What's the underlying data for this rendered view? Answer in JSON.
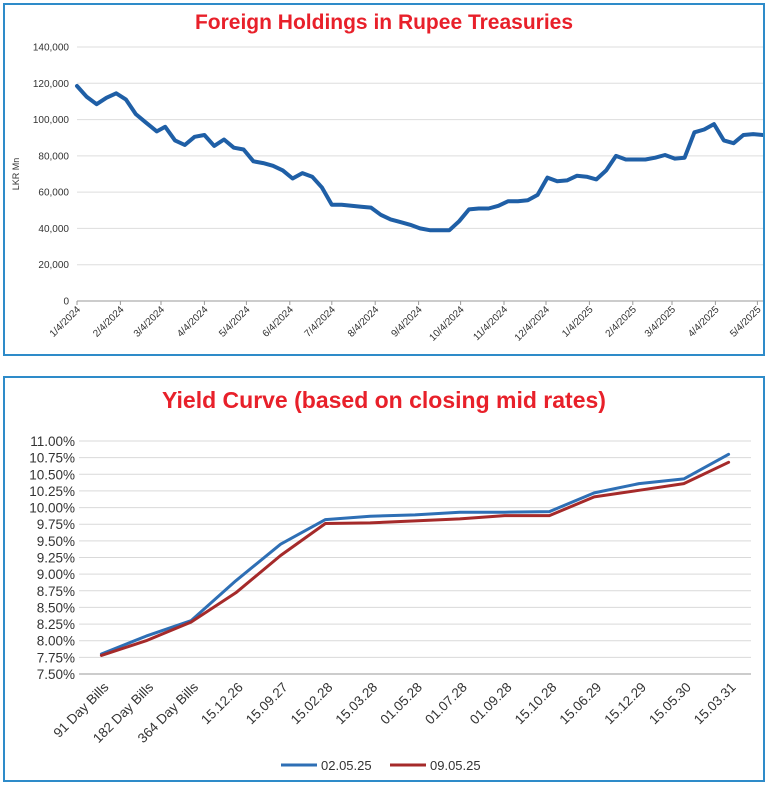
{
  "chart_data": [
    {
      "type": "line",
      "title": "Foreign Holdings in Rupee Treasuries",
      "ylabel": "LKR Mn",
      "xlabel": "",
      "ylim": [
        0,
        140000
      ],
      "yticks": [
        "0",
        "20,000",
        "40,000",
        "60,000",
        "80,000",
        "100,000",
        "120,000",
        "140,000"
      ],
      "xtick_labels": [
        "1/4/2024",
        "2/4/2024",
        "3/4/2024",
        "4/4/2024",
        "5/4/2024",
        "6/4/2024",
        "7/4/2024",
        "8/4/2024",
        "9/4/2024",
        "10/4/2024",
        "11/4/2024",
        "12/4/2024",
        "1/4/2025",
        "2/4/2025",
        "3/4/2025",
        "4/4/2025",
        "5/4/2025"
      ],
      "grid": "horizontal",
      "legend": "none",
      "series": [
        {
          "color": "#1f5fa6",
          "x": [
            "2024-01-04",
            "2024-01-11",
            "2024-01-18",
            "2024-01-25",
            "2024-02-01",
            "2024-02-08",
            "2024-02-15",
            "2024-02-22",
            "2024-03-01",
            "2024-03-07",
            "2024-03-14",
            "2024-03-21",
            "2024-03-28",
            "2024-04-04",
            "2024-04-11",
            "2024-04-18",
            "2024-04-25",
            "2024-05-02",
            "2024-05-09",
            "2024-05-16",
            "2024-05-23",
            "2024-05-30",
            "2024-06-06",
            "2024-06-13",
            "2024-06-20",
            "2024-06-27",
            "2024-07-04",
            "2024-07-11",
            "2024-07-18",
            "2024-07-25",
            "2024-08-01",
            "2024-08-08",
            "2024-08-15",
            "2024-08-22",
            "2024-08-29",
            "2024-09-05",
            "2024-09-12",
            "2024-09-19",
            "2024-09-26",
            "2024-10-03",
            "2024-10-10",
            "2024-10-17",
            "2024-10-24",
            "2024-10-31",
            "2024-11-07",
            "2024-11-14",
            "2024-11-21",
            "2024-11-28",
            "2024-12-05",
            "2024-12-12",
            "2024-12-19",
            "2024-12-26",
            "2025-01-02",
            "2025-01-09",
            "2025-01-16",
            "2025-01-23",
            "2025-01-30",
            "2025-02-06",
            "2025-02-13",
            "2025-02-20",
            "2025-02-27",
            "2025-03-06",
            "2025-03-13",
            "2025-03-20",
            "2025-03-27",
            "2025-04-03",
            "2025-04-10",
            "2025-04-17",
            "2025-04-24",
            "2025-05-01",
            "2025-05-08"
          ],
          "values": [
            118500,
            112500,
            108500,
            112000,
            114500,
            111000,
            103000,
            98500,
            93500,
            96000,
            88500,
            86000,
            90500,
            91500,
            85500,
            89000,
            84500,
            83500,
            77000,
            76000,
            74500,
            72000,
            67500,
            70500,
            68500,
            62500,
            53000,
            53000,
            52500,
            52000,
            51500,
            47500,
            45000,
            43500,
            42000,
            40000,
            39000,
            39000,
            39000,
            44000,
            50500,
            51000,
            51000,
            52500,
            55000,
            55000,
            55500,
            58500,
            68000,
            66000,
            66500,
            69000,
            68500,
            67000,
            72000,
            80000,
            78000,
            78000,
            78000,
            79000,
            80500,
            78500,
            79000,
            93000,
            94500,
            97500,
            88500,
            87000,
            91500,
            92000,
            91500
          ]
        }
      ]
    },
    {
      "type": "line",
      "title": "Yield Curve (based on closing mid rates)",
      "xlabel": "",
      "ylabel": "",
      "ylim": [
        7.5,
        11.0
      ],
      "yticks": [
        "7.50%",
        "7.75%",
        "8.00%",
        "8.25%",
        "8.50%",
        "8.75%",
        "9.00%",
        "9.25%",
        "9.50%",
        "9.75%",
        "10.00%",
        "10.25%",
        "10.50%",
        "10.75%",
        "11.00%"
      ],
      "categories": [
        "91 Day Bills",
        "182 Day Bills",
        "364 Day Bills",
        "15.12.26",
        "15.09.27",
        "15.02.28",
        "15.03.28",
        "01.05.28",
        "01.07.28",
        "01.09.28",
        "15.10.28",
        "15.06.29",
        "15.12.29",
        "15.05.30",
        "15.03.31"
      ],
      "grid": "horizontal",
      "legend": "bottom",
      "series": [
        {
          "name": "02.05.25",
          "color": "#2e6fb5",
          "values": [
            7.8,
            8.07,
            8.3,
            8.9,
            9.45,
            9.82,
            9.87,
            9.89,
            9.93,
            9.93,
            9.94,
            10.22,
            10.36,
            10.43,
            10.8
          ]
        },
        {
          "name": "09.05.25",
          "color": "#a52a2a",
          "values": [
            7.78,
            8.0,
            8.28,
            8.72,
            9.28,
            9.76,
            9.77,
            9.8,
            9.83,
            9.88,
            9.88,
            10.16,
            10.26,
            10.36,
            10.68
          ]
        }
      ]
    }
  ]
}
